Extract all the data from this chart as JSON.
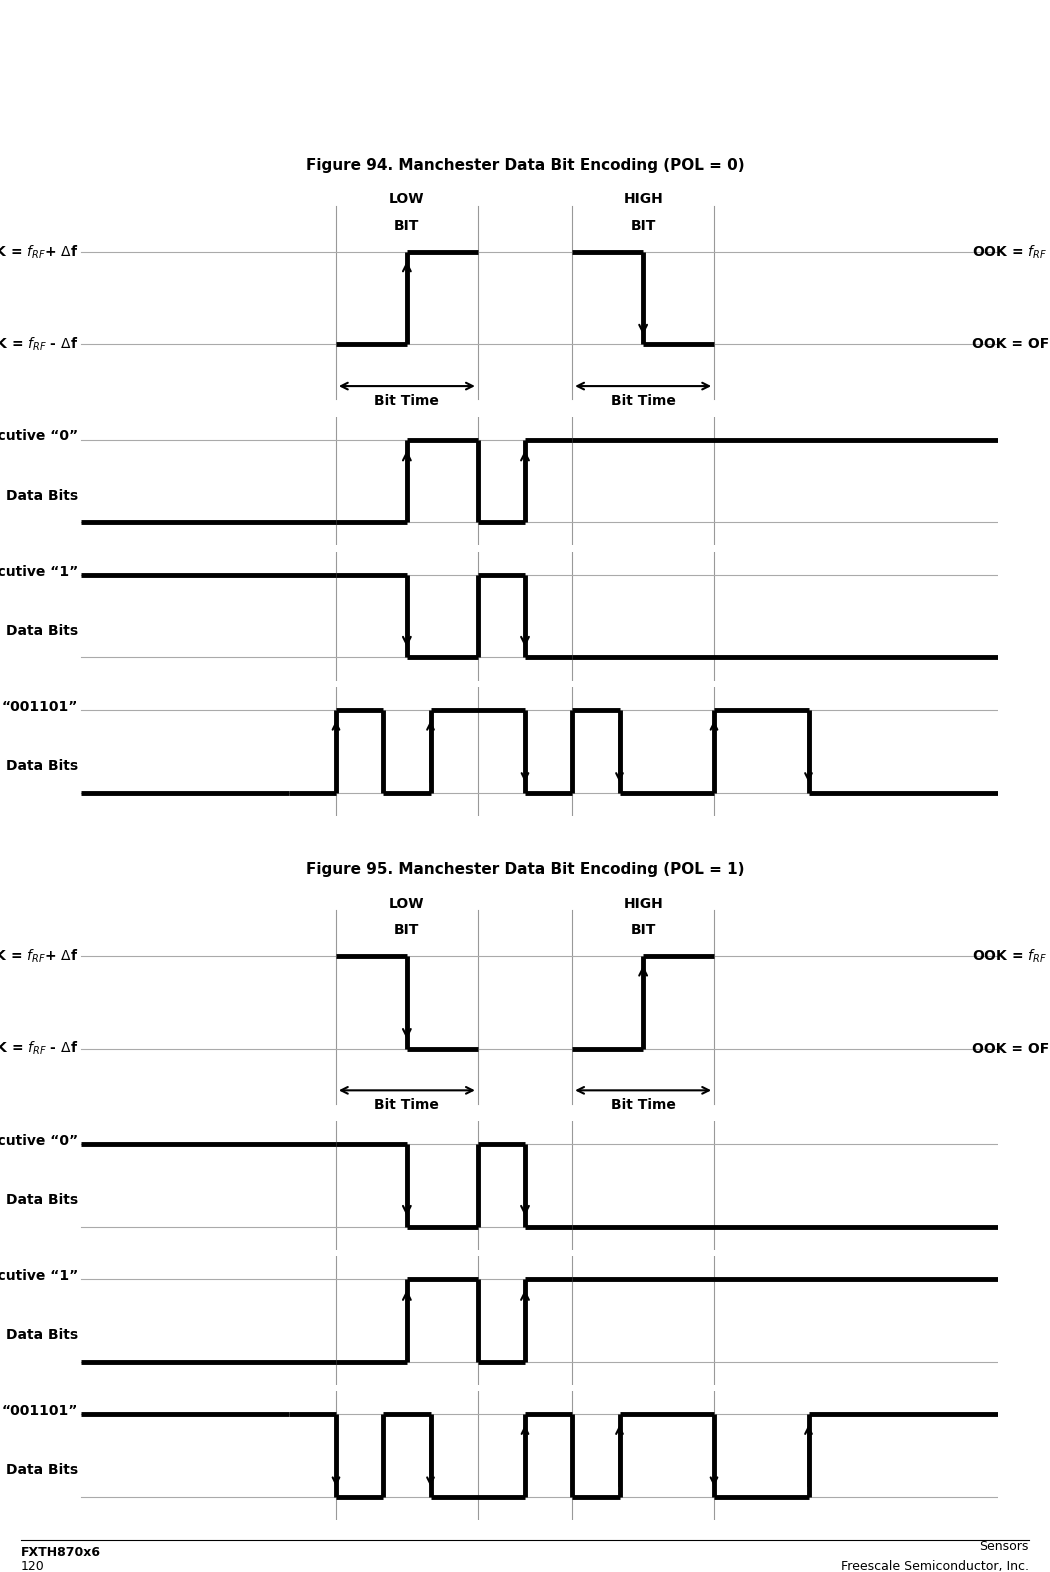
{
  "fig_width": 10.5,
  "fig_height": 15.72,
  "bg_color": "#ffffff",
  "header_color": "#b0b0b0",
  "line_color": "#000000",
  "signal_lw": 3.5,
  "grid_color": "#999999",
  "fig94_caption": "Figure 94. Manchester Data Bit Encoding (POL = 0)",
  "fig95_caption": "Figure 95. Manchester Data Bit Encoding (POL = 1)",
  "footer_left": "FXTH870x6",
  "footer_page": "120",
  "footer_right": "Freescale Semiconductor, Inc."
}
